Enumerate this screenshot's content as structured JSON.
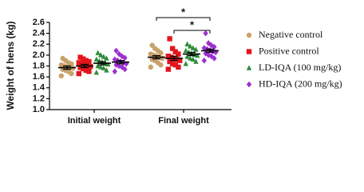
{
  "chart_data": {
    "type": "scatter",
    "y_label": "Weight of hens (kg)",
    "categories": [
      "Initial weight",
      "Final weight"
    ],
    "ylim": [
      1.0,
      2.6
    ],
    "yticks": [
      {
        "value": 1.0,
        "label": "1.0"
      },
      1.2,
      1.4,
      1.6,
      1.8,
      {
        "value": 2.0,
        "label": "2.0"
      },
      2.2,
      2.4,
      2.6
    ],
    "series": [
      {
        "name": "Negative control",
        "color": "#c9a26a",
        "marker": "circle",
        "values": [
          [
            1.62,
            1.66,
            1.7,
            1.72,
            1.74,
            1.76,
            1.77,
            1.78,
            1.8,
            1.82,
            1.84,
            1.86,
            1.9,
            1.94
          ],
          [
            1.78,
            1.82,
            1.86,
            1.9,
            1.92,
            1.94,
            1.96,
            1.98,
            2.0,
            2.02,
            2.04,
            2.08,
            2.12,
            2.18
          ]
        ],
        "mean": [
          1.77,
          1.96
        ],
        "sem": [
          0.03,
          0.03
        ]
      },
      {
        "name": "Positive control",
        "color": "#e3151c",
        "marker": "square",
        "values": [
          [
            1.66,
            1.7,
            1.72,
            1.75,
            1.77,
            1.79,
            1.8,
            1.82,
            1.84,
            1.86,
            1.88,
            1.9,
            1.93,
            1.96
          ],
          [
            1.74,
            1.78,
            1.82,
            1.84,
            1.88,
            1.9,
            1.92,
            1.94,
            1.96,
            1.98,
            2.02,
            2.06,
            2.12,
            2.3
          ]
        ],
        "mean": [
          1.8,
          1.94
        ],
        "sem": [
          0.03,
          0.04
        ]
      },
      {
        "name": "LD-IQA (100 mg/kg)",
        "color": "#2e8b3a",
        "marker": "triangle",
        "values": [
          [
            1.68,
            1.72,
            1.76,
            1.78,
            1.8,
            1.83,
            1.85,
            1.87,
            1.89,
            1.92,
            1.94,
            1.97,
            2.0,
            2.04
          ],
          [
            1.84,
            1.88,
            1.92,
            1.94,
            1.97,
            1.99,
            2.01,
            2.03,
            2.05,
            2.08,
            2.1,
            2.13,
            2.16,
            2.2
          ]
        ],
        "mean": [
          1.85,
          2.02
        ],
        "sem": [
          0.03,
          0.03
        ]
      },
      {
        "name": "HD-IQA (200 mg/kg)",
        "color": "#9b30d0",
        "marker": "diamond",
        "values": [
          [
            1.7,
            1.74,
            1.78,
            1.8,
            1.82,
            1.84,
            1.86,
            1.88,
            1.9,
            1.92,
            1.95,
            1.98,
            2.02,
            2.08
          ],
          [
            1.9,
            1.94,
            1.98,
            2.0,
            2.03,
            2.05,
            2.07,
            2.09,
            2.11,
            2.13,
            2.15,
            2.18,
            2.22,
            2.4
          ]
        ],
        "mean": [
          1.87,
          2.08
        ],
        "sem": [
          0.03,
          0.03
        ]
      }
    ],
    "annotations": [
      {
        "text": "*"
      },
      {
        "text": "*"
      }
    ]
  }
}
